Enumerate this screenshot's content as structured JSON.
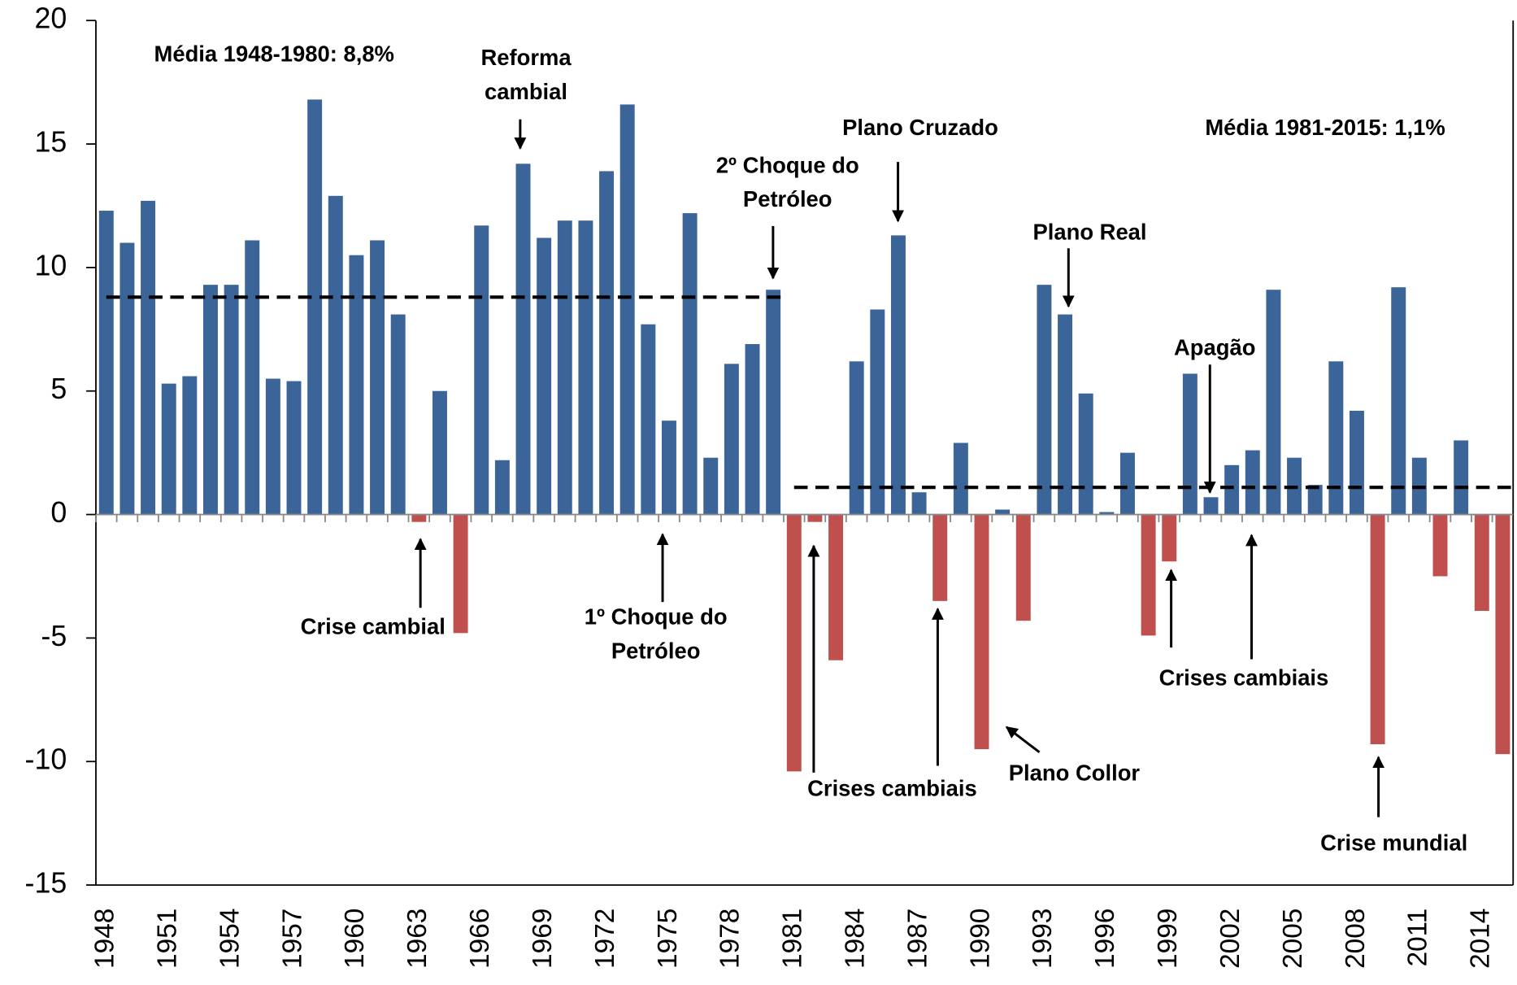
{
  "chart_data": {
    "type": "bar",
    "x": [
      1948,
      1949,
      1950,
      1951,
      1952,
      1953,
      1954,
      1955,
      1956,
      1957,
      1958,
      1959,
      1960,
      1961,
      1962,
      1963,
      1964,
      1965,
      1966,
      1967,
      1968,
      1969,
      1970,
      1971,
      1972,
      1973,
      1974,
      1975,
      1976,
      1977,
      1978,
      1979,
      1980,
      1981,
      1982,
      1983,
      1984,
      1985,
      1986,
      1987,
      1988,
      1989,
      1990,
      1991,
      1992,
      1993,
      1994,
      1995,
      1996,
      1997,
      1998,
      1999,
      2000,
      2001,
      2002,
      2003,
      2004,
      2005,
      2006,
      2007,
      2008,
      2009,
      2010,
      2011,
      2012,
      2013,
      2014,
      2015
    ],
    "values": [
      12.3,
      11.0,
      12.7,
      5.3,
      5.6,
      9.3,
      9.3,
      11.1,
      5.5,
      5.4,
      16.8,
      12.9,
      10.5,
      11.1,
      8.1,
      -0.3,
      5.0,
      -4.8,
      11.7,
      2.2,
      14.2,
      11.2,
      11.9,
      11.9,
      13.9,
      16.6,
      7.7,
      3.8,
      12.2,
      2.3,
      6.1,
      6.9,
      9.1,
      -10.4,
      -0.3,
      -5.9,
      6.2,
      8.3,
      11.3,
      0.9,
      -3.5,
      2.9,
      -9.5,
      0.2,
      -4.3,
      9.3,
      8.1,
      4.9,
      0.1,
      2.5,
      -4.9,
      -1.9,
      5.7,
      0.7,
      2.0,
      2.6,
      9.1,
      2.3,
      1.2,
      6.2,
      4.2,
      -9.3,
      9.2,
      2.3,
      -2.5,
      3.0,
      -3.9,
      -9.7
    ],
    "positive_color": "#3b6499",
    "negative_color": "#c0504d",
    "xlim": [
      1947.5,
      2015.5
    ],
    "xticks": [
      1948,
      1951,
      1954,
      1957,
      1960,
      1963,
      1966,
      1969,
      1972,
      1975,
      1978,
      1981,
      1984,
      1987,
      1990,
      1993,
      1996,
      1999,
      2002,
      2005,
      2008,
      2011,
      2014
    ],
    "ylim": [
      -15,
      20
    ],
    "yticks": [
      -15,
      -10,
      -5,
      0,
      5,
      10,
      15,
      20
    ],
    "mean_lines": [
      {
        "value": 8.8,
        "from": 1948,
        "to": 1980
      },
      {
        "value": 1.1,
        "from": 1981,
        "to": 2015
      }
    ],
    "annotations": [
      {
        "lines": [
          "Média 1948-1980: 8,8%"
        ]
      },
      {
        "lines": [
          "Reforma",
          "cambial"
        ]
      },
      {
        "lines": [
          "Plano Cruzado"
        ]
      },
      {
        "lines": [
          "Média 1981-2015: 1,1%"
        ]
      },
      {
        "lines": [
          "2º Choque do",
          "Petróleo"
        ]
      },
      {
        "lines": [
          "Plano Real"
        ]
      },
      {
        "lines": [
          "Apagão"
        ]
      },
      {
        "lines": [
          "Crise cambial"
        ]
      },
      {
        "lines": [
          "1º Choque do",
          "Petróleo"
        ]
      },
      {
        "lines": [
          "Crises cambiais"
        ]
      },
      {
        "lines": [
          "Plano Collor"
        ]
      },
      {
        "lines": [
          "Crises cambiais"
        ]
      },
      {
        "lines": [
          "Crise mundial"
        ]
      }
    ]
  }
}
